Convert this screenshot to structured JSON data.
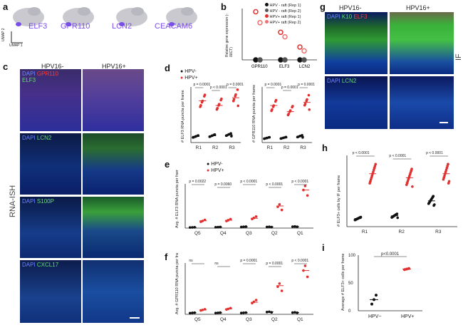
{
  "panels": {
    "a": {
      "label": "a",
      "genes": [
        "ELF3",
        "GPR110",
        "LCN2",
        "CEACAM6"
      ],
      "axis_y": "UMAP 2",
      "axis_x": "UMAP 1"
    },
    "b": {
      "label": "b",
      "ylabel": "Relative gene expression (-δδCT)",
      "legend": [
        "HPV - raft (Rep 1)",
        "HPV - raft (Rep 2)",
        "HPV+ raft (Rep 1)",
        "HPV+ raft (Rep 2)"
      ],
      "categories": [
        "GPR110",
        "ELF3",
        "LCN2"
      ]
    },
    "c": {
      "label": "c",
      "col_left": "HPV16-",
      "col_right": "HPV16+",
      "side_label": "RNA-ISH",
      "rows": [
        {
          "dapi": "DAPI",
          "marker1": "GPR110",
          "marker2": "ELF3"
        },
        {
          "dapi": "DAPI",
          "marker1": "LCN2",
          "marker2": ""
        },
        {
          "dapi": "DAPI",
          "marker1": "S100P",
          "marker2": ""
        },
        {
          "dapi": "DAPI",
          "marker1": "CXCL17",
          "marker2": ""
        }
      ]
    },
    "d": {
      "label": "d",
      "legend_neg": "HPV-",
      "legend_pos": "HPV+",
      "left": {
        "ylabel": "# ELF3 RNA puncta per frame",
        "cats": [
          "R1",
          "R2",
          "R3"
        ],
        "pvals": [
          "p = 0.0001",
          "p < 0.0001",
          "p = 0.0001"
        ]
      },
      "right": {
        "ylabel": "# GPR110 RNA puncta per frame",
        "cats": [
          "R1",
          "R2",
          "R3"
        ],
        "pvals": [
          "p = 0.0001",
          "p = 0.0001",
          "p = 0.0001"
        ]
      }
    },
    "e": {
      "label": "e",
      "legend_neg": "HPV-",
      "legend_pos": "HPV+",
      "ylabel": "Avg. # ELF3 RNA puncta per frame",
      "cats": [
        "Q5",
        "Q4",
        "Q3",
        "Q2",
        "Q1"
      ],
      "pvals": [
        "p = 0.0022",
        "p = 0.0060",
        "p < 0.0001",
        "p < 0.0001",
        "p < 0.0001"
      ]
    },
    "f": {
      "label": "f",
      "ylabel": "Avg. # GPR110 RNA puncta per frame",
      "cats": [
        "Q5",
        "Q4",
        "Q3",
        "Q2",
        "Q1"
      ],
      "pvals": [
        "ns",
        "ns",
        "p = 0.0001",
        "p = 0.0001",
        "p < 0.0001"
      ]
    },
    "g": {
      "label": "g",
      "col_left": "HPV16-",
      "col_right": "HPV16+",
      "side_label": "IF",
      "rows": [
        {
          "dapi": "DAPI",
          "marker1": "K10",
          "marker2": "ELF3"
        },
        {
          "dapi": "DAPI",
          "marker1": "LCN2",
          "marker2": ""
        }
      ]
    },
    "h": {
      "label": "h",
      "ylabel": "# ELF3+ cells by IF per frame",
      "cats": [
        "R1",
        "R2",
        "R3"
      ],
      "pvals": [
        "p < 0.0001",
        "p < 0.0001",
        "p < 0.0001"
      ]
    },
    "i": {
      "label": "i",
      "ylabel": "Average # ELF3+ cells per frame",
      "cats": [
        "HPV−",
        "HPV+"
      ],
      "yticks": [
        "0",
        "50",
        "100"
      ],
      "pval": "p<0.0001"
    }
  },
  "chart_data": [
    {
      "type": "scatter",
      "panel": "b",
      "categories": [
        "GPR110",
        "ELF3",
        "LCN2"
      ],
      "series": [
        {
          "name": "HPV - raft (Rep 1)",
          "values": [
            0,
            0,
            0
          ]
        },
        {
          "name": "HPV - raft (Rep 2)",
          "values": [
            0,
            0,
            0
          ]
        },
        {
          "name": "HPV+ raft (Rep 1)",
          "values": [
            7.5,
            4.3,
            2.0
          ]
        },
        {
          "name": "HPV+ raft (Rep 2)",
          "values": [
            5.8,
            3.6,
            1.4
          ]
        }
      ]
    },
    {
      "type": "scatter",
      "panel": "d-left",
      "categories": [
        "R1",
        "R2",
        "R3"
      ],
      "series": [
        {
          "name": "HPV-",
          "values": [
            20,
            22,
            25
          ]
        },
        {
          "name": "HPV+",
          "values": [
            135,
            120,
            145
          ]
        }
      ]
    },
    {
      "type": "scatter",
      "panel": "d-right",
      "categories": [
        "R1",
        "R2",
        "R3"
      ],
      "series": [
        {
          "name": "HPV-",
          "values": [
            15,
            15,
            20
          ]
        },
        {
          "name": "HPV+",
          "values": [
            120,
            100,
            130
          ]
        }
      ]
    },
    {
      "type": "scatter",
      "panel": "e",
      "categories": [
        "Q5",
        "Q4",
        "Q3",
        "Q2",
        "Q1"
      ],
      "series": [
        {
          "name": "HPV-",
          "values": [
            3,
            4,
            5,
            5,
            6
          ]
        },
        {
          "name": "HPV+",
          "values": [
            30,
            32,
            40,
            90,
            155
          ]
        }
      ]
    },
    {
      "type": "scatter",
      "panel": "f",
      "categories": [
        "Q5",
        "Q4",
        "Q3",
        "Q2",
        "Q1"
      ],
      "series": [
        {
          "name": "HPV-",
          "values": [
            5,
            5,
            5,
            8,
            6
          ]
        },
        {
          "name": "HPV+",
          "values": [
            15,
            18,
            40,
            95,
            145
          ]
        }
      ]
    },
    {
      "type": "scatter",
      "panel": "h",
      "categories": [
        "R1",
        "R2",
        "R3"
      ],
      "series": [
        {
          "name": "HPV-",
          "values": [
            12,
            16,
            38
          ]
        },
        {
          "name": "HPV+",
          "values": [
            78,
            72,
            78
          ]
        }
      ]
    },
    {
      "type": "scatter",
      "panel": "i",
      "categories": [
        "HPV−",
        "HPV+"
      ],
      "series": [
        {
          "name": "mean",
          "values": [
            20,
            75
          ]
        }
      ],
      "ylim": [
        0,
        100
      ]
    }
  ]
}
